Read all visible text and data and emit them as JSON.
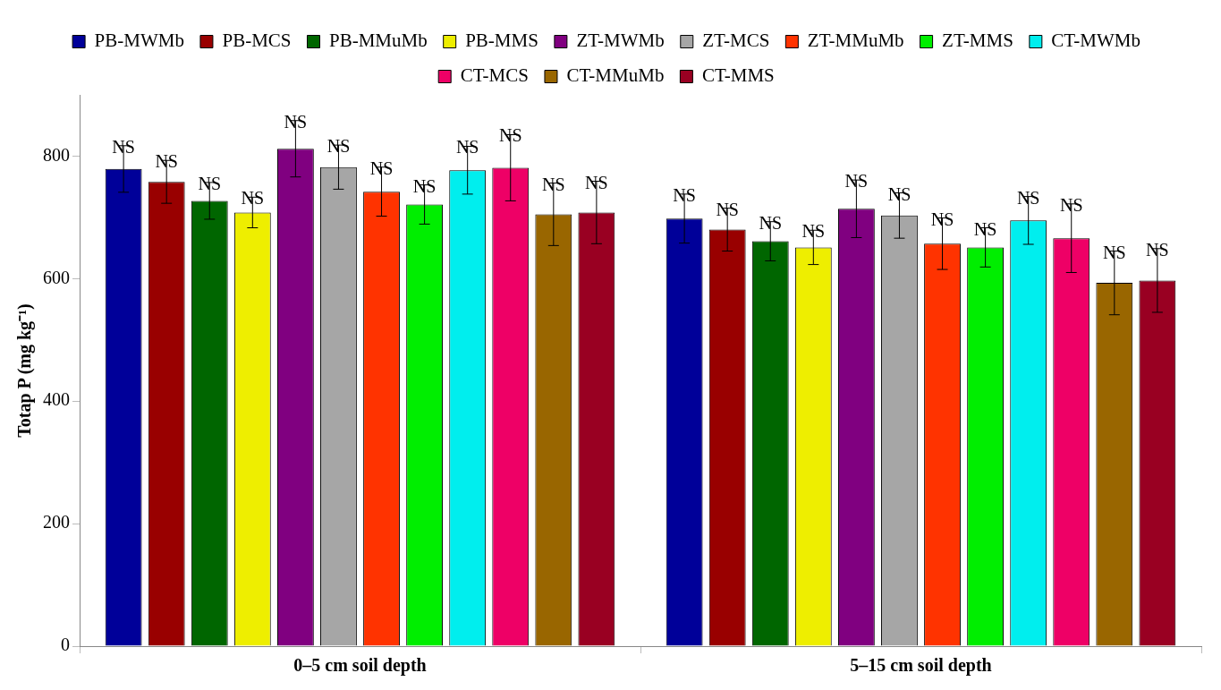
{
  "chart_data": {
    "type": "bar",
    "ylabel": "Totap P (mg kg⁻¹)",
    "categories": [
      "0–5 cm soil depth",
      "5–15 cm soil depth"
    ],
    "ylim": [
      0,
      900
    ],
    "yticks": [
      0,
      200,
      400,
      600,
      800
    ],
    "grid": false,
    "legend": "top",
    "series": [
      {
        "name": "PB-MWMb",
        "color": "#000099",
        "values": [
          779,
          698
        ],
        "errors": [
          38,
          40
        ],
        "value_labels": [
          "NS",
          "NS"
        ]
      },
      {
        "name": "PB-MCS",
        "color": "#990000",
        "values": [
          758,
          680
        ],
        "errors": [
          35,
          35
        ],
        "value_labels": [
          "NS",
          "NS"
        ]
      },
      {
        "name": "PB-MMuMb",
        "color": "#006600",
        "values": [
          727,
          661
        ],
        "errors": [
          30,
          32
        ],
        "value_labels": [
          "NS",
          "NS"
        ]
      },
      {
        "name": "PB-MMS",
        "color": "#eeee00",
        "values": [
          708,
          651
        ],
        "errors": [
          25,
          28
        ],
        "value_labels": [
          "NS",
          "NS"
        ]
      },
      {
        "name": "ZT-MWMb",
        "color": "#800080",
        "values": [
          812,
          714
        ],
        "errors": [
          46,
          47
        ],
        "value_labels": [
          "NS",
          "NS"
        ]
      },
      {
        "name": "ZT-MCS",
        "color": "#a6a6a6",
        "values": [
          782,
          703
        ],
        "errors": [
          36,
          37
        ],
        "value_labels": [
          "NS",
          "NS"
        ]
      },
      {
        "name": "ZT-MMuMb",
        "color": "#ff3300",
        "values": [
          742,
          657
        ],
        "errors": [
          40,
          42
        ],
        "value_labels": [
          "NS",
          "NS"
        ]
      },
      {
        "name": "ZT-MMS",
        "color": "#00ee00",
        "values": [
          721,
          651
        ],
        "errors": [
          32,
          32
        ],
        "value_labels": [
          "NS",
          "NS"
        ]
      },
      {
        "name": "CT-MWMb",
        "color": "#00eeee",
        "values": [
          777,
          695
        ],
        "errors": [
          39,
          39
        ],
        "value_labels": [
          "NS",
          "NS"
        ]
      },
      {
        "name": "CT-MCS",
        "color": "#ee0066",
        "values": [
          781,
          666
        ],
        "errors": [
          54,
          56
        ],
        "value_labels": [
          "NS",
          "NS"
        ]
      },
      {
        "name": "CT-MMuMb",
        "color": "#996600",
        "values": [
          705,
          593
        ],
        "errors": [
          51,
          52
        ],
        "value_labels": [
          "NS",
          "NS"
        ]
      },
      {
        "name": "CT-MMS",
        "color": "#990022",
        "values": [
          708,
          597
        ],
        "errors": [
          51,
          52
        ],
        "value_labels": [
          "NS",
          "NS"
        ]
      }
    ]
  }
}
